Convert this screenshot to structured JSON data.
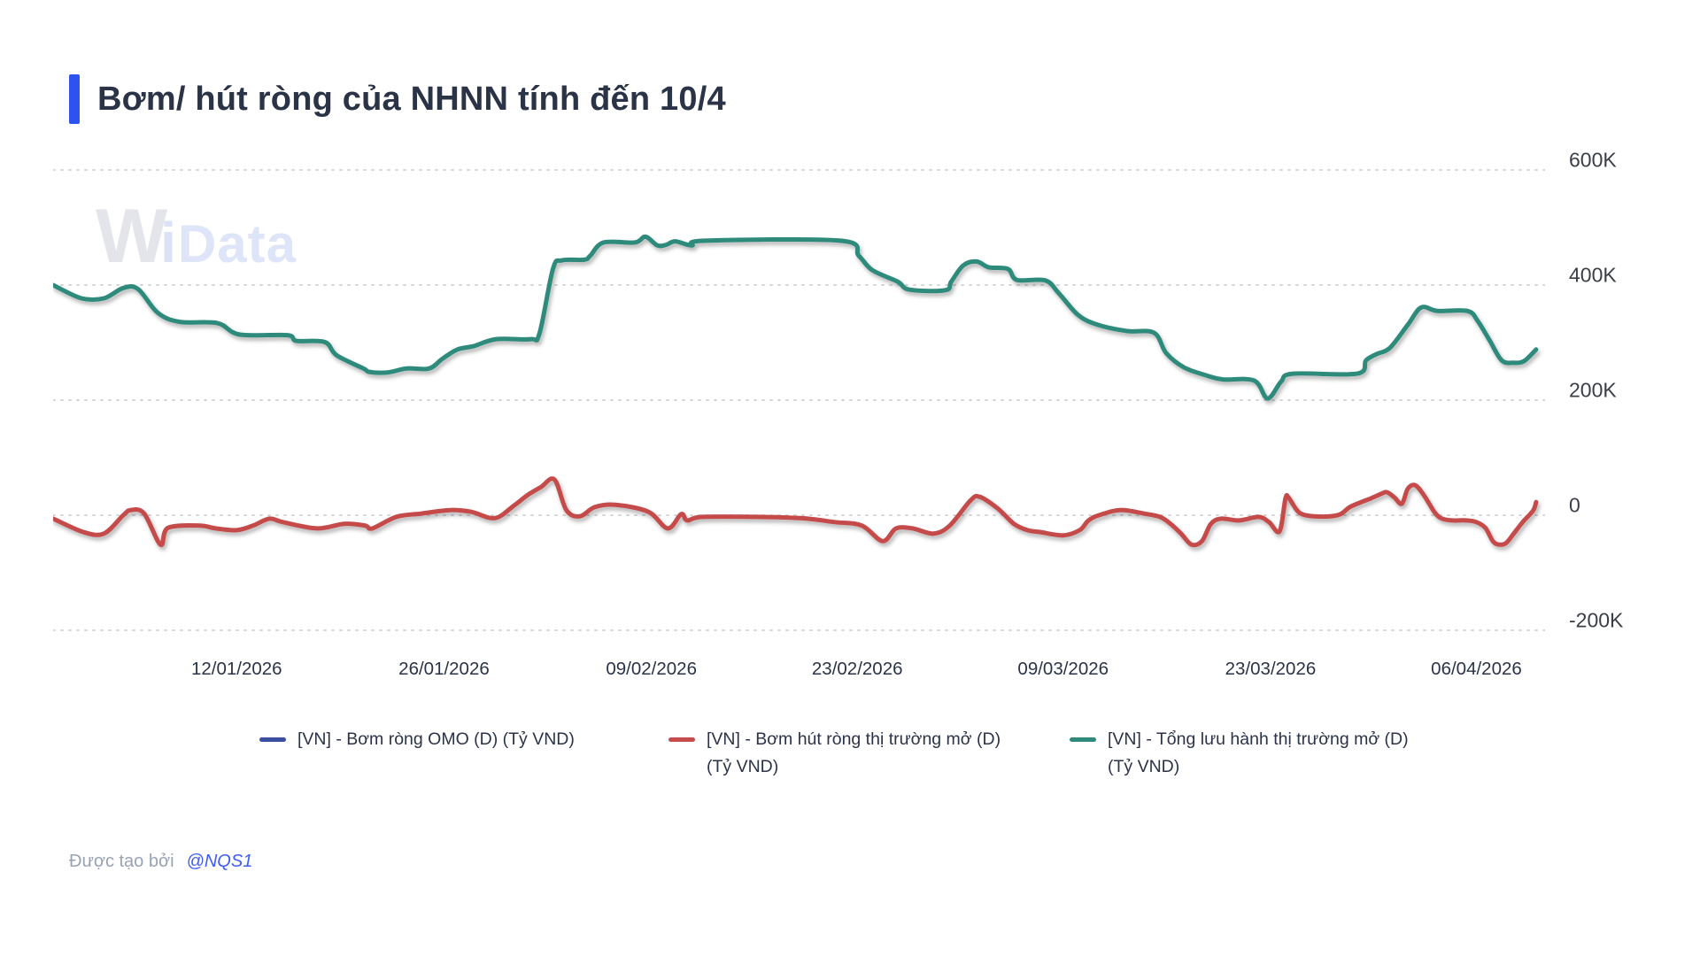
{
  "header": {
    "title": "Bơm/ hút ròng của NHNN tính đến 10/4",
    "accent_color": "#2d52ef"
  },
  "watermark": {
    "part1": "W",
    "part2": "i",
    "part3": "Data"
  },
  "chart_data": {
    "type": "line",
    "title": "Bơm/ hút ròng của NHNN tính đến 10/4",
    "grid": "dotted-horizontal",
    "legend_position": "bottom",
    "ylim": [
      -200,
      600
    ],
    "y_axis": {
      "side": "right",
      "ticks": [
        {
          "label": "600K",
          "value": 600
        },
        {
          "label": "400K",
          "value": 400
        },
        {
          "label": "200K",
          "value": 200
        },
        {
          "label": "0",
          "value": 0
        },
        {
          "label": "-200K",
          "value": -200
        }
      ]
    },
    "x_axis": {
      "tick_labels": [
        "12/01/2026",
        "26/01/2026",
        "09/02/2026",
        "23/02/2026",
        "09/03/2026",
        "23/03/2026",
        "06/04/2026"
      ],
      "tick_positions": [
        0.123,
        0.262,
        0.401,
        0.539,
        0.677,
        0.816,
        0.954
      ]
    },
    "point_format": "[x fraction of plot width, value in K (nghin ty VND)]",
    "series": [
      {
        "name": "[VN] - Bơm ròng OMO (D) (Tỷ VND)",
        "color": "#3b4fa0",
        "visible_in_plot": false,
        "points": []
      },
      {
        "name": "[VN] - Bơm hút ròng thị trường mở (D) (Tỷ VND)",
        "color": "#c54b4c",
        "visible_in_plot": true,
        "points": [
          [
            0.0,
            -6
          ],
          [
            0.02,
            -29
          ],
          [
            0.034,
            -32
          ],
          [
            0.047,
            0
          ],
          [
            0.052,
            9
          ],
          [
            0.061,
            3
          ],
          [
            0.072,
            -51
          ],
          [
            0.077,
            -22
          ],
          [
            0.098,
            -18
          ],
          [
            0.109,
            -23
          ],
          [
            0.123,
            -26
          ],
          [
            0.134,
            -18
          ],
          [
            0.145,
            -6
          ],
          [
            0.154,
            -12
          ],
          [
            0.177,
            -23
          ],
          [
            0.195,
            -15
          ],
          [
            0.209,
            -18
          ],
          [
            0.214,
            -23
          ],
          [
            0.23,
            -3
          ],
          [
            0.247,
            3
          ],
          [
            0.266,
            9
          ],
          [
            0.28,
            6
          ],
          [
            0.296,
            -5
          ],
          [
            0.309,
            17
          ],
          [
            0.318,
            35
          ],
          [
            0.327,
            49
          ],
          [
            0.336,
            62
          ],
          [
            0.344,
            9
          ],
          [
            0.353,
            -2
          ],
          [
            0.363,
            14
          ],
          [
            0.377,
            18
          ],
          [
            0.399,
            6
          ],
          [
            0.412,
            -23
          ],
          [
            0.421,
            2
          ],
          [
            0.425,
            -9
          ],
          [
            0.435,
            -3
          ],
          [
            0.472,
            -3
          ],
          [
            0.501,
            -5
          ],
          [
            0.524,
            -12
          ],
          [
            0.542,
            -18
          ],
          [
            0.556,
            -45
          ],
          [
            0.565,
            -23
          ],
          [
            0.576,
            -23
          ],
          [
            0.59,
            -32
          ],
          [
            0.601,
            -18
          ],
          [
            0.615,
            26
          ],
          [
            0.621,
            32
          ],
          [
            0.633,
            12
          ],
          [
            0.644,
            -15
          ],
          [
            0.653,
            -26
          ],
          [
            0.661,
            -29
          ],
          [
            0.677,
            -35
          ],
          [
            0.688,
            -26
          ],
          [
            0.694,
            -9
          ],
          [
            0.701,
            0
          ],
          [
            0.715,
            9
          ],
          [
            0.731,
            3
          ],
          [
            0.742,
            -3
          ],
          [
            0.749,
            -15
          ],
          [
            0.756,
            -32
          ],
          [
            0.763,
            -51
          ],
          [
            0.77,
            -45
          ],
          [
            0.776,
            -15
          ],
          [
            0.783,
            -6
          ],
          [
            0.795,
            -9
          ],
          [
            0.808,
            -3
          ],
          [
            0.815,
            -12
          ],
          [
            0.822,
            -28
          ],
          [
            0.826,
            29
          ],
          [
            0.828,
            31
          ],
          [
            0.833,
            11
          ],
          [
            0.837,
            2
          ],
          [
            0.845,
            -2
          ],
          [
            0.856,
            -2
          ],
          [
            0.863,
            2
          ],
          [
            0.869,
            14
          ],
          [
            0.877,
            23
          ],
          [
            0.883,
            29
          ],
          [
            0.89,
            37
          ],
          [
            0.894,
            40
          ],
          [
            0.899,
            31
          ],
          [
            0.904,
            20
          ],
          [
            0.908,
            46
          ],
          [
            0.913,
            52
          ],
          [
            0.919,
            34
          ],
          [
            0.926,
            5
          ],
          [
            0.931,
            -6
          ],
          [
            0.938,
            -9
          ],
          [
            0.947,
            -9
          ],
          [
            0.954,
            -12
          ],
          [
            0.96,
            -22
          ],
          [
            0.965,
            -45
          ],
          [
            0.969,
            -51
          ],
          [
            0.974,
            -48
          ],
          [
            0.979,
            -32
          ],
          [
            0.985,
            -12
          ],
          [
            0.992,
            8
          ],
          [
            0.994,
            23
          ]
        ]
      },
      {
        "name": "[VN] - Tổng lưu hành thị trường mở (D) (Tỷ VND)",
        "color": "#2e8b7c",
        "visible_in_plot": true,
        "points": [
          [
            0.0,
            400
          ],
          [
            0.019,
            377
          ],
          [
            0.034,
            377
          ],
          [
            0.047,
            395
          ],
          [
            0.057,
            393
          ],
          [
            0.07,
            352
          ],
          [
            0.085,
            336
          ],
          [
            0.11,
            334
          ],
          [
            0.125,
            314
          ],
          [
            0.157,
            313
          ],
          [
            0.163,
            303
          ],
          [
            0.182,
            301
          ],
          [
            0.19,
            278
          ],
          [
            0.208,
            255
          ],
          [
            0.212,
            249
          ],
          [
            0.224,
            248
          ],
          [
            0.237,
            255
          ],
          [
            0.252,
            255
          ],
          [
            0.261,
            272
          ],
          [
            0.271,
            288
          ],
          [
            0.282,
            294
          ],
          [
            0.297,
            306
          ],
          [
            0.32,
            306
          ],
          [
            0.326,
            316
          ],
          [
            0.335,
            428
          ],
          [
            0.341,
            443
          ],
          [
            0.356,
            444
          ],
          [
            0.36,
            451
          ],
          [
            0.369,
            474
          ],
          [
            0.39,
            474
          ],
          [
            0.397,
            484
          ],
          [
            0.405,
            469
          ],
          [
            0.411,
            470
          ],
          [
            0.417,
            476
          ],
          [
            0.428,
            469
          ],
          [
            0.437,
            477
          ],
          [
            0.528,
            477
          ],
          [
            0.54,
            451
          ],
          [
            0.549,
            426
          ],
          [
            0.566,
            406
          ],
          [
            0.574,
            392
          ],
          [
            0.598,
            391
          ],
          [
            0.602,
            406
          ],
          [
            0.61,
            434
          ],
          [
            0.619,
            441
          ],
          [
            0.627,
            431
          ],
          [
            0.64,
            428
          ],
          [
            0.646,
            409
          ],
          [
            0.665,
            408
          ],
          [
            0.674,
            386
          ],
          [
            0.687,
            348
          ],
          [
            0.7,
            331
          ],
          [
            0.72,
            320
          ],
          [
            0.738,
            317
          ],
          [
            0.746,
            282
          ],
          [
            0.758,
            257
          ],
          [
            0.773,
            243
          ],
          [
            0.784,
            236
          ],
          [
            0.805,
            234
          ],
          [
            0.814,
            203
          ],
          [
            0.823,
            232
          ],
          [
            0.831,
            246
          ],
          [
            0.874,
            246
          ],
          [
            0.88,
            269
          ],
          [
            0.887,
            280
          ],
          [
            0.896,
            291
          ],
          [
            0.908,
            331
          ],
          [
            0.917,
            361
          ],
          [
            0.928,
            355
          ],
          [
            0.948,
            355
          ],
          [
            0.955,
            337
          ],
          [
            0.963,
            303
          ],
          [
            0.971,
            269
          ],
          [
            0.979,
            265
          ],
          [
            0.986,
            268
          ],
          [
            0.994,
            288
          ]
        ]
      }
    ]
  },
  "footer": {
    "created_by": "Được tạo bởi",
    "author": "@NQS1",
    "author_color": "#3e5cf7"
  }
}
